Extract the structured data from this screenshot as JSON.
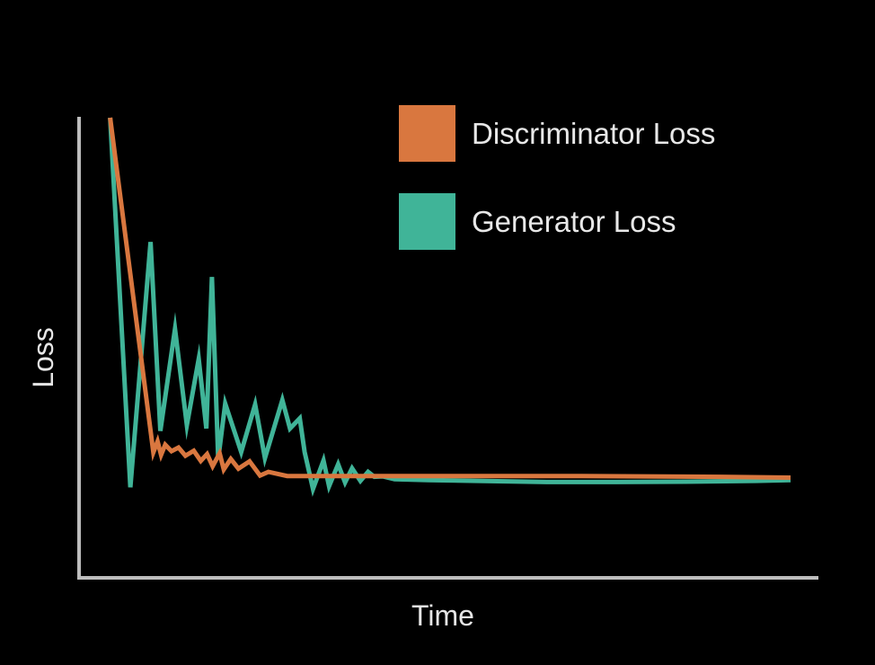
{
  "chart_data": {
    "type": "line",
    "xlabel": "Time",
    "ylabel": "Loss",
    "xlim": [
      0,
      100
    ],
    "ylim": [
      0,
      100
    ],
    "ticks": "none",
    "grid": false,
    "legend_position": "top-right",
    "series": [
      {
        "name": "Discriminator Loss",
        "color": "#d9773f",
        "x": [
          2.4,
          8.6,
          9.2,
          9.7,
          10.3,
          11.2,
          12.2,
          13.2,
          14.4,
          15.4,
          16.3,
          17.1,
          18.1,
          18.7,
          19.7,
          20.8,
          22.4,
          23.9,
          25.1,
          27.8,
          30.0,
          33.6,
          37.8,
          44.0,
          55.0,
          70.0,
          90.0,
          100.0
        ],
        "y": [
          100.0,
          17.6,
          20.3,
          17.0,
          19.5,
          17.9,
          18.8,
          16.8,
          18.0,
          15.5,
          17.2,
          14.2,
          17.4,
          13.4,
          16.0,
          13.6,
          15.4,
          11.9,
          12.8,
          11.8,
          11.8,
          11.8,
          11.8,
          11.8,
          11.8,
          11.8,
          11.6,
          11.4
        ]
      },
      {
        "name": "Generator Loss",
        "color": "#40b498",
        "x": [
          2.4,
          5.3,
          8.2,
          9.6,
          11.7,
          13.4,
          15.1,
          16.2,
          17.0,
          17.9,
          18.9,
          21.2,
          23.2,
          24.6,
          27.1,
          28.2,
          29.6,
          30.3,
          31.5,
          33.0,
          33.8,
          35.1,
          36.1,
          37.1,
          38.3,
          39.4,
          40.3,
          41.5,
          43.2,
          48.0,
          55.0,
          65.0,
          75.0,
          85.0,
          95.0,
          100.0
        ],
        "y": [
          100.0,
          9.0,
          69.4,
          22.9,
          48.0,
          24.3,
          40.6,
          23.5,
          60.8,
          15.9,
          29.6,
          17.7,
          29.4,
          16.2,
          30.5,
          23.5,
          26.0,
          17.7,
          8.6,
          15.6,
          9.3,
          14.7,
          10.2,
          13.7,
          10.6,
          12.8,
          11.6,
          11.7,
          11.0,
          10.8,
          10.6,
          10.3,
          10.3,
          10.4,
          10.6,
          10.8
        ]
      }
    ]
  }
}
